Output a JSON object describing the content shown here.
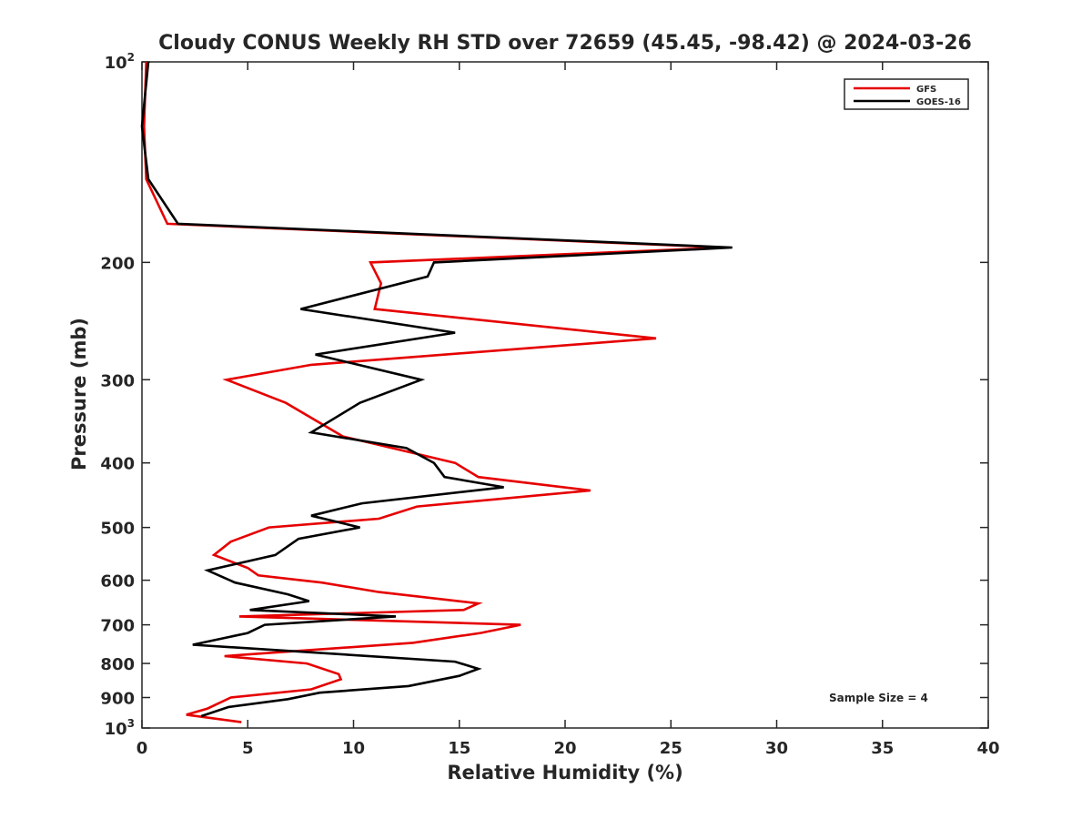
{
  "chart_data": {
    "type": "line",
    "title": "Cloudy CONUS Weekly RH STD over 72659 (45.45, -98.42) @ 2024-03-26",
    "xlabel": "Relative Humidity (%)",
    "ylabel": "Pressure (mb)",
    "xlim": [
      0,
      40
    ],
    "ylim": [
      1000,
      100
    ],
    "y_scale": "log",
    "y_reversed": true,
    "grid": false,
    "legend_position": "top-right",
    "annotation": "Sample Size = 4",
    "x_ticks": [
      "0",
      "5",
      "10",
      "15",
      "20",
      "25",
      "30",
      "35",
      "40"
    ],
    "y_ticks": [
      {
        "value": 100,
        "base": "10",
        "exp": "2"
      },
      {
        "value": 200,
        "label": "200"
      },
      {
        "value": 300,
        "label": "300"
      },
      {
        "value": 400,
        "label": "400"
      },
      {
        "value": 500,
        "label": "500"
      },
      {
        "value": 600,
        "label": "600"
      },
      {
        "value": 700,
        "label": "700"
      },
      {
        "value": 800,
        "label": "800"
      },
      {
        "value": 900,
        "label": "900"
      },
      {
        "value": 1000,
        "base": "10",
        "exp": "3"
      }
    ],
    "series": [
      {
        "name": "GFS",
        "color": "#e60000",
        "points": [
          [
            0.2,
            100
          ],
          [
            0.1,
            125
          ],
          [
            0.2,
            150
          ],
          [
            1.2,
            175
          ],
          [
            27.5,
            190
          ],
          [
            10.8,
            200
          ],
          [
            11.3,
            215
          ],
          [
            11.0,
            235
          ],
          [
            24.3,
            260
          ],
          [
            8.0,
            285
          ],
          [
            4.0,
            300
          ],
          [
            6.8,
            325
          ],
          [
            9.5,
            365
          ],
          [
            14.8,
            400
          ],
          [
            15.9,
            420
          ],
          [
            21.2,
            440
          ],
          [
            13.0,
            465
          ],
          [
            11.2,
            485
          ],
          [
            6.0,
            500
          ],
          [
            4.2,
            525
          ],
          [
            3.4,
            550
          ],
          [
            5.0,
            575
          ],
          [
            5.5,
            590
          ],
          [
            8.5,
            605
          ],
          [
            11.2,
            625
          ],
          [
            15.9,
            650
          ],
          [
            15.2,
            665
          ],
          [
            4.6,
            680
          ],
          [
            17.9,
            700
          ],
          [
            16.0,
            720
          ],
          [
            12.8,
            745
          ],
          [
            3.9,
            780
          ],
          [
            7.8,
            800
          ],
          [
            9.3,
            830
          ],
          [
            9.4,
            845
          ],
          [
            8.0,
            875
          ],
          [
            4.2,
            900
          ],
          [
            3.1,
            935
          ],
          [
            2.1,
            955
          ],
          [
            4.7,
            980
          ]
        ]
      },
      {
        "name": "GOES-16",
        "color": "#000000",
        "points": [
          [
            0.3,
            100
          ],
          [
            0.0,
            125
          ],
          [
            0.3,
            150
          ],
          [
            1.7,
            175
          ],
          [
            27.9,
            190
          ],
          [
            13.8,
            200
          ],
          [
            13.5,
            210
          ],
          [
            7.5,
            235
          ],
          [
            14.8,
            255
          ],
          [
            8.2,
            275
          ],
          [
            13.2,
            300
          ],
          [
            10.3,
            325
          ],
          [
            8.0,
            360
          ],
          [
            12.5,
            380
          ],
          [
            13.8,
            400
          ],
          [
            14.3,
            420
          ],
          [
            17.1,
            435
          ],
          [
            10.4,
            460
          ],
          [
            8.0,
            480
          ],
          [
            10.3,
            500
          ],
          [
            7.4,
            520
          ],
          [
            6.3,
            550
          ],
          [
            3.1,
            580
          ],
          [
            4.4,
            605
          ],
          [
            6.9,
            630
          ],
          [
            7.9,
            645
          ],
          [
            5.1,
            665
          ],
          [
            12.0,
            680
          ],
          [
            5.8,
            700
          ],
          [
            5.0,
            720
          ],
          [
            2.4,
            750
          ],
          [
            14.8,
            795
          ],
          [
            15.9,
            815
          ],
          [
            15.0,
            835
          ],
          [
            12.6,
            865
          ],
          [
            8.4,
            885
          ],
          [
            6.9,
            905
          ],
          [
            4.1,
            930
          ],
          [
            2.8,
            960
          ]
        ]
      }
    ]
  }
}
